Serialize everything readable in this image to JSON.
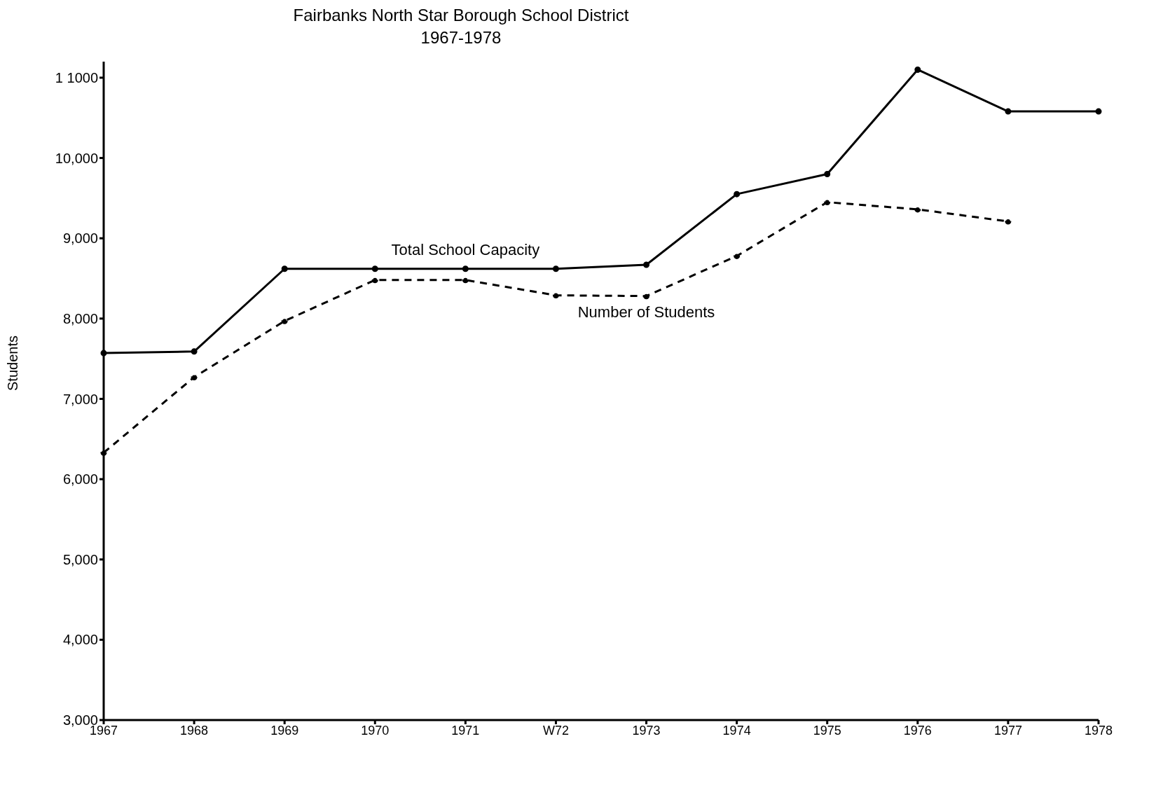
{
  "chart_data": {
    "type": "line",
    "title": "Fairbanks North Star Borough School District",
    "subtitle": "1967-1978",
    "ylabel": "Students",
    "categories": [
      "1967",
      "1968",
      "1969",
      "1970",
      "1971",
      "W72",
      "1973",
      "1974",
      "1975",
      "1976",
      "1977",
      "1978"
    ],
    "series": [
      {
        "name": "Total School Capacity",
        "color": "#000000",
        "line_style": "solid",
        "values": [
          7570,
          7590,
          8620,
          8620,
          8620,
          8620,
          8670,
          9550,
          9800,
          11100,
          10580,
          10580
        ]
      },
      {
        "name": "Number of Students",
        "color": "#000000",
        "line_style": "dashed",
        "values": [
          6330,
          7270,
          7970,
          8480,
          8480,
          8290,
          8280,
          8780,
          9450,
          9360,
          9210,
          null
        ]
      }
    ],
    "ylim": [
      3000,
      11200
    ],
    "yticks": [
      {
        "value": 3000,
        "label": "3,000"
      },
      {
        "value": 4000,
        "label": "4,000"
      },
      {
        "value": 5000,
        "label": "5,000"
      },
      {
        "value": 6000,
        "label": "6,000"
      },
      {
        "value": 7000,
        "label": "7,000"
      },
      {
        "value": 8000,
        "label": "8,000"
      },
      {
        "value": 9000,
        "label": "9,000"
      },
      {
        "value": 10000,
        "label": "10,000"
      },
      {
        "value": 11000,
        "label": "1 1000"
      }
    ],
    "grid": false,
    "legend": false,
    "marker": "circle"
  }
}
